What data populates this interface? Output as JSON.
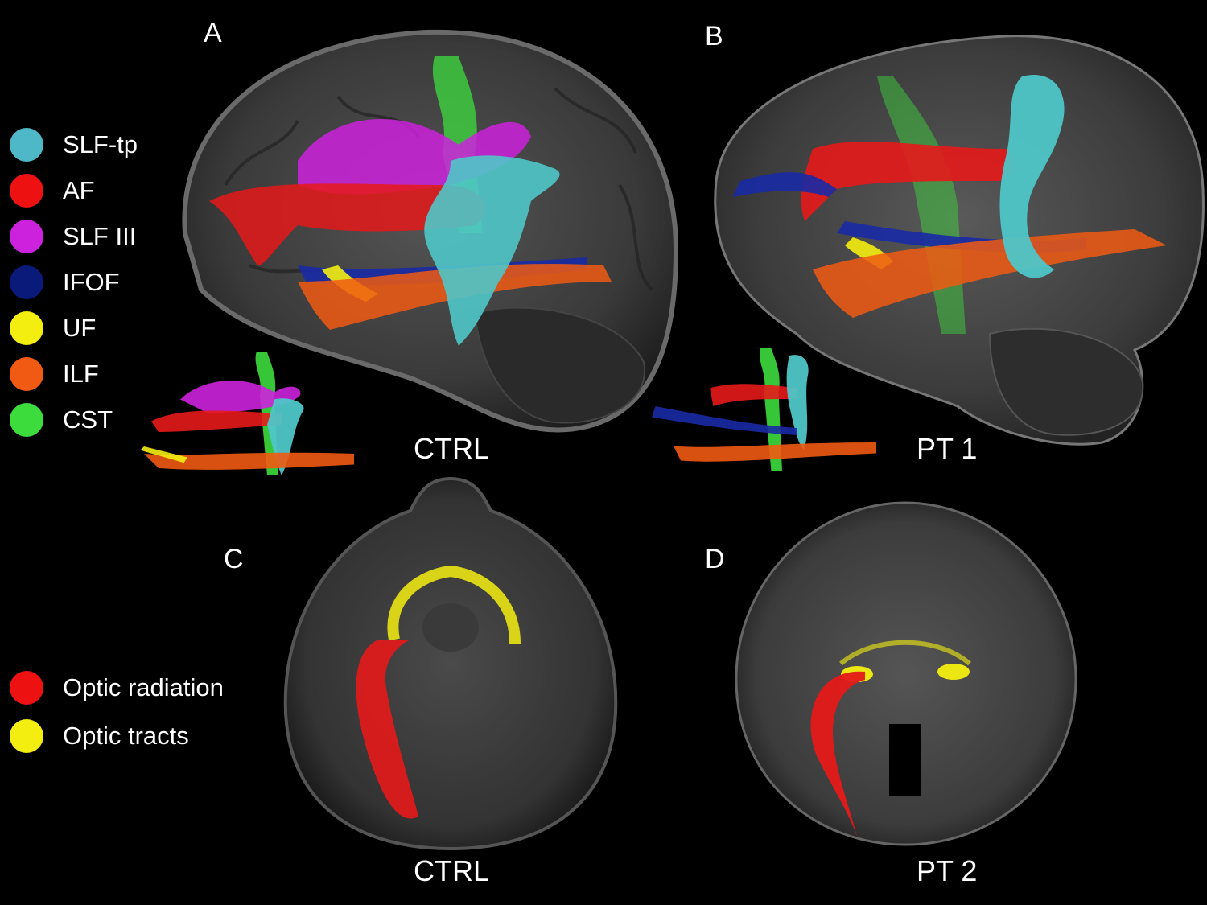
{
  "panels": {
    "a": {
      "letter": "A",
      "caption": "CTRL"
    },
    "b": {
      "letter": "B",
      "caption": "PT 1"
    },
    "c": {
      "letter": "C",
      "caption": "CTRL"
    },
    "d": {
      "letter": "D",
      "caption": "PT 2"
    }
  },
  "legend_tracts": [
    {
      "label": "SLF-tp",
      "color": "#4fb8c8"
    },
    {
      "label": "AF",
      "color": "#ee1111"
    },
    {
      "label": "SLF III",
      "color": "#cc22dd"
    },
    {
      "label": "IFOF",
      "color": "#0a1a7a"
    },
    {
      "label": "UF",
      "color": "#f4ee10"
    },
    {
      "label": "ILF",
      "color": "#f05a12"
    },
    {
      "label": "CST",
      "color": "#3ddc3d"
    }
  ],
  "legend_optic": [
    {
      "label": "Optic radiation",
      "color": "#ee1111"
    },
    {
      "label": "Optic tracts",
      "color": "#f4ee10"
    }
  ]
}
